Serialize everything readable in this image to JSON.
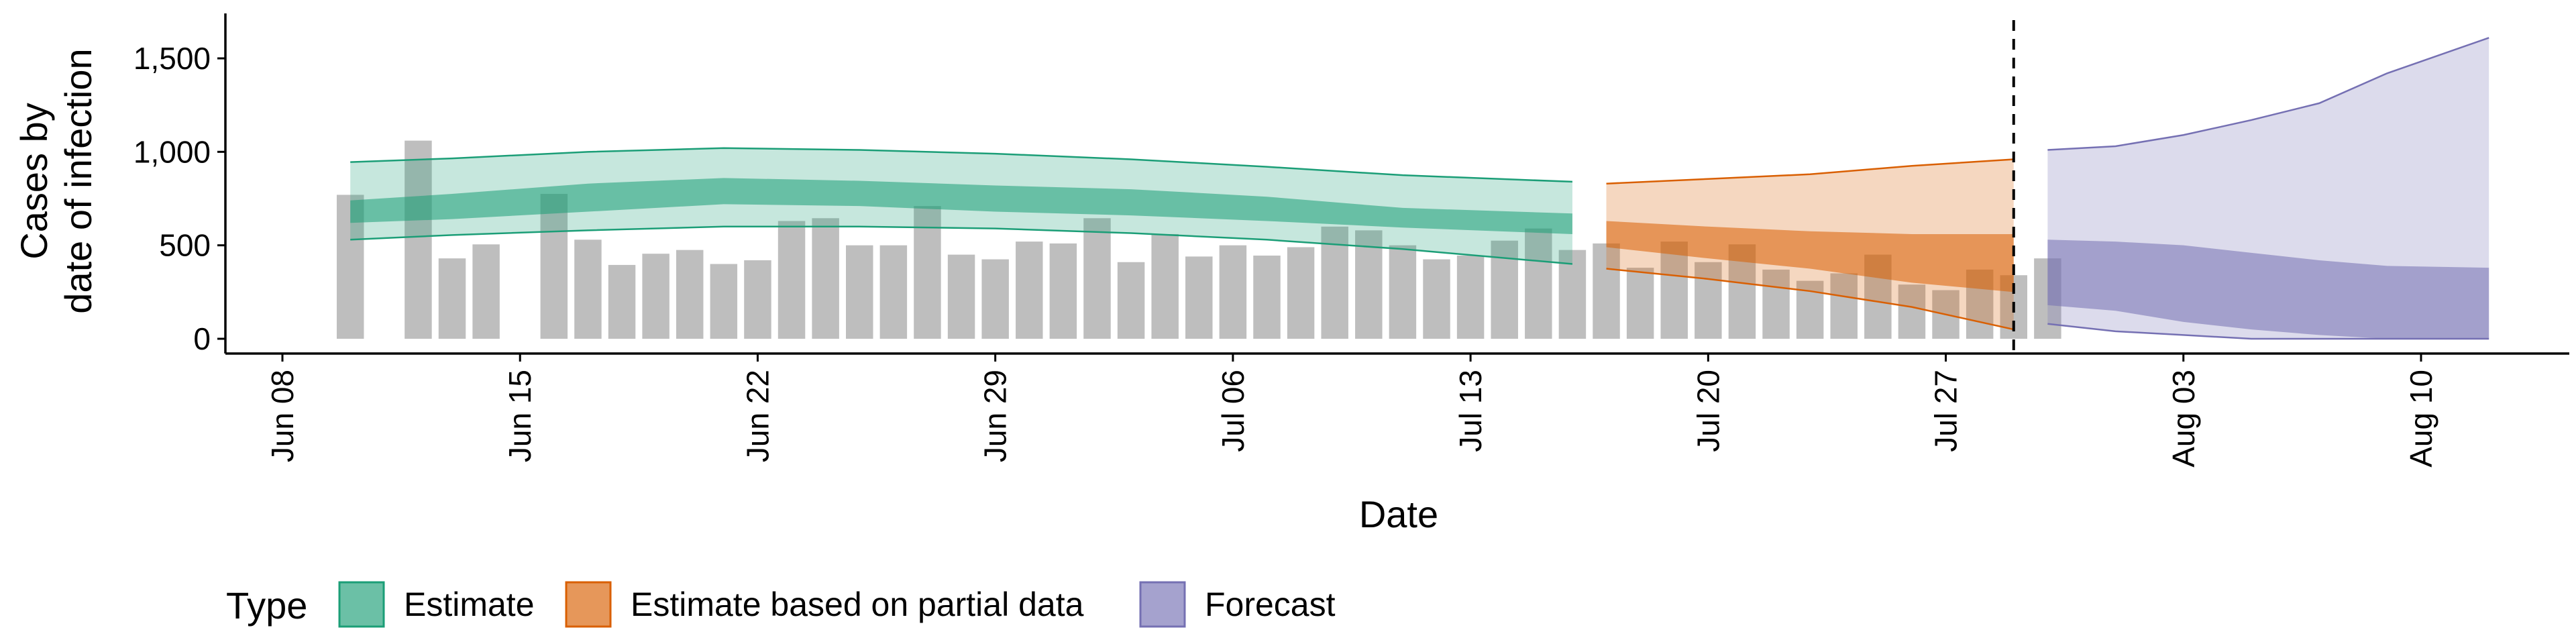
{
  "chart_data": {
    "type": "area",
    "xlabel": "Date",
    "ylabel_line1": "Cases by",
    "ylabel_line2": "date of infection",
    "ylim": [
      0,
      1650
    ],
    "y_ticks": [
      0,
      500,
      1000,
      1500
    ],
    "y_tick_labels": [
      "0",
      "500",
      "1,000",
      "1,500"
    ],
    "x_range": [
      "2020-06-08",
      "2020-08-17"
    ],
    "x_ticks": [
      "2020-06-08",
      "2020-06-15",
      "2020-06-22",
      "2020-06-29",
      "2020-07-06",
      "2020-07-13",
      "2020-07-20",
      "2020-07-27",
      "2020-08-03",
      "2020-08-10"
    ],
    "x_tick_labels": [
      "Jun 08",
      "Jun 15",
      "Jun 22",
      "Jun 29",
      "Jul 06",
      "Jul 13",
      "Jul 20",
      "Jul 27",
      "Aug 03",
      "Aug 10"
    ],
    "vline_date": "2020-07-29",
    "legend": {
      "title": "Type",
      "position": "bottom",
      "items": [
        "Estimate",
        "Estimate based on partial data",
        "Forecast"
      ]
    },
    "colors": {
      "estimate": "#1B9E77",
      "partial": "#D95F02",
      "forecast": "#7570B3",
      "bars": "#BEBEBE",
      "vline": "#000000"
    },
    "bars": {
      "start_date": "2020-06-10",
      "values": [
        770,
        0,
        1060,
        430,
        505,
        0,
        775,
        530,
        395,
        455,
        475,
        400,
        420,
        630,
        645,
        500,
        500,
        710,
        450,
        425,
        520,
        510,
        645,
        410,
        560,
        440,
        500,
        445,
        490,
        600,
        580,
        500,
        425,
        445,
        525,
        590,
        475,
        510,
        380,
        520,
        410,
        505,
        370,
        310,
        350,
        450,
        290,
        260,
        370,
        340,
        430
      ]
    },
    "series": [
      {
        "name": "Estimate",
        "dates": [
          "2020-06-10",
          "2020-06-13",
          "2020-06-17",
          "2020-06-21",
          "2020-06-25",
          "2020-06-29",
          "2020-07-03",
          "2020-07-07",
          "2020-07-11",
          "2020-07-16"
        ],
        "outer_upper": [
          945,
          965,
          1000,
          1020,
          1010,
          990,
          960,
          920,
          875,
          840
        ],
        "outer_lower": [
          530,
          555,
          580,
          600,
          600,
          590,
          565,
          530,
          480,
          400
        ],
        "inner_upper": [
          740,
          775,
          830,
          860,
          845,
          820,
          800,
          760,
          700,
          670
        ],
        "inner_lower": [
          620,
          640,
          680,
          720,
          710,
          680,
          660,
          630,
          595,
          560
        ]
      },
      {
        "name": "Estimate based on partial data",
        "dates": [
          "2020-07-17",
          "2020-07-20",
          "2020-07-23",
          "2020-07-26",
          "2020-07-29"
        ],
        "outer_upper": [
          830,
          855,
          880,
          925,
          960
        ],
        "outer_lower": [
          375,
          320,
          255,
          170,
          50
        ],
        "inner_upper": [
          630,
          600,
          575,
          560,
          560
        ],
        "inner_lower": [
          490,
          430,
          375,
          300,
          250
        ]
      },
      {
        "name": "Forecast",
        "dates": [
          "2020-07-30",
          "2020-08-01",
          "2020-08-03",
          "2020-08-05",
          "2020-08-07",
          "2020-08-09",
          "2020-08-12"
        ],
        "outer_upper": [
          1010,
          1030,
          1090,
          1170,
          1260,
          1420,
          1610
        ],
        "outer_lower": [
          80,
          40,
          20,
          0,
          0,
          0,
          0
        ],
        "inner_upper": [
          530,
          520,
          500,
          460,
          420,
          390,
          380
        ],
        "inner_lower": [
          180,
          150,
          90,
          50,
          20,
          0,
          0
        ]
      }
    ]
  }
}
